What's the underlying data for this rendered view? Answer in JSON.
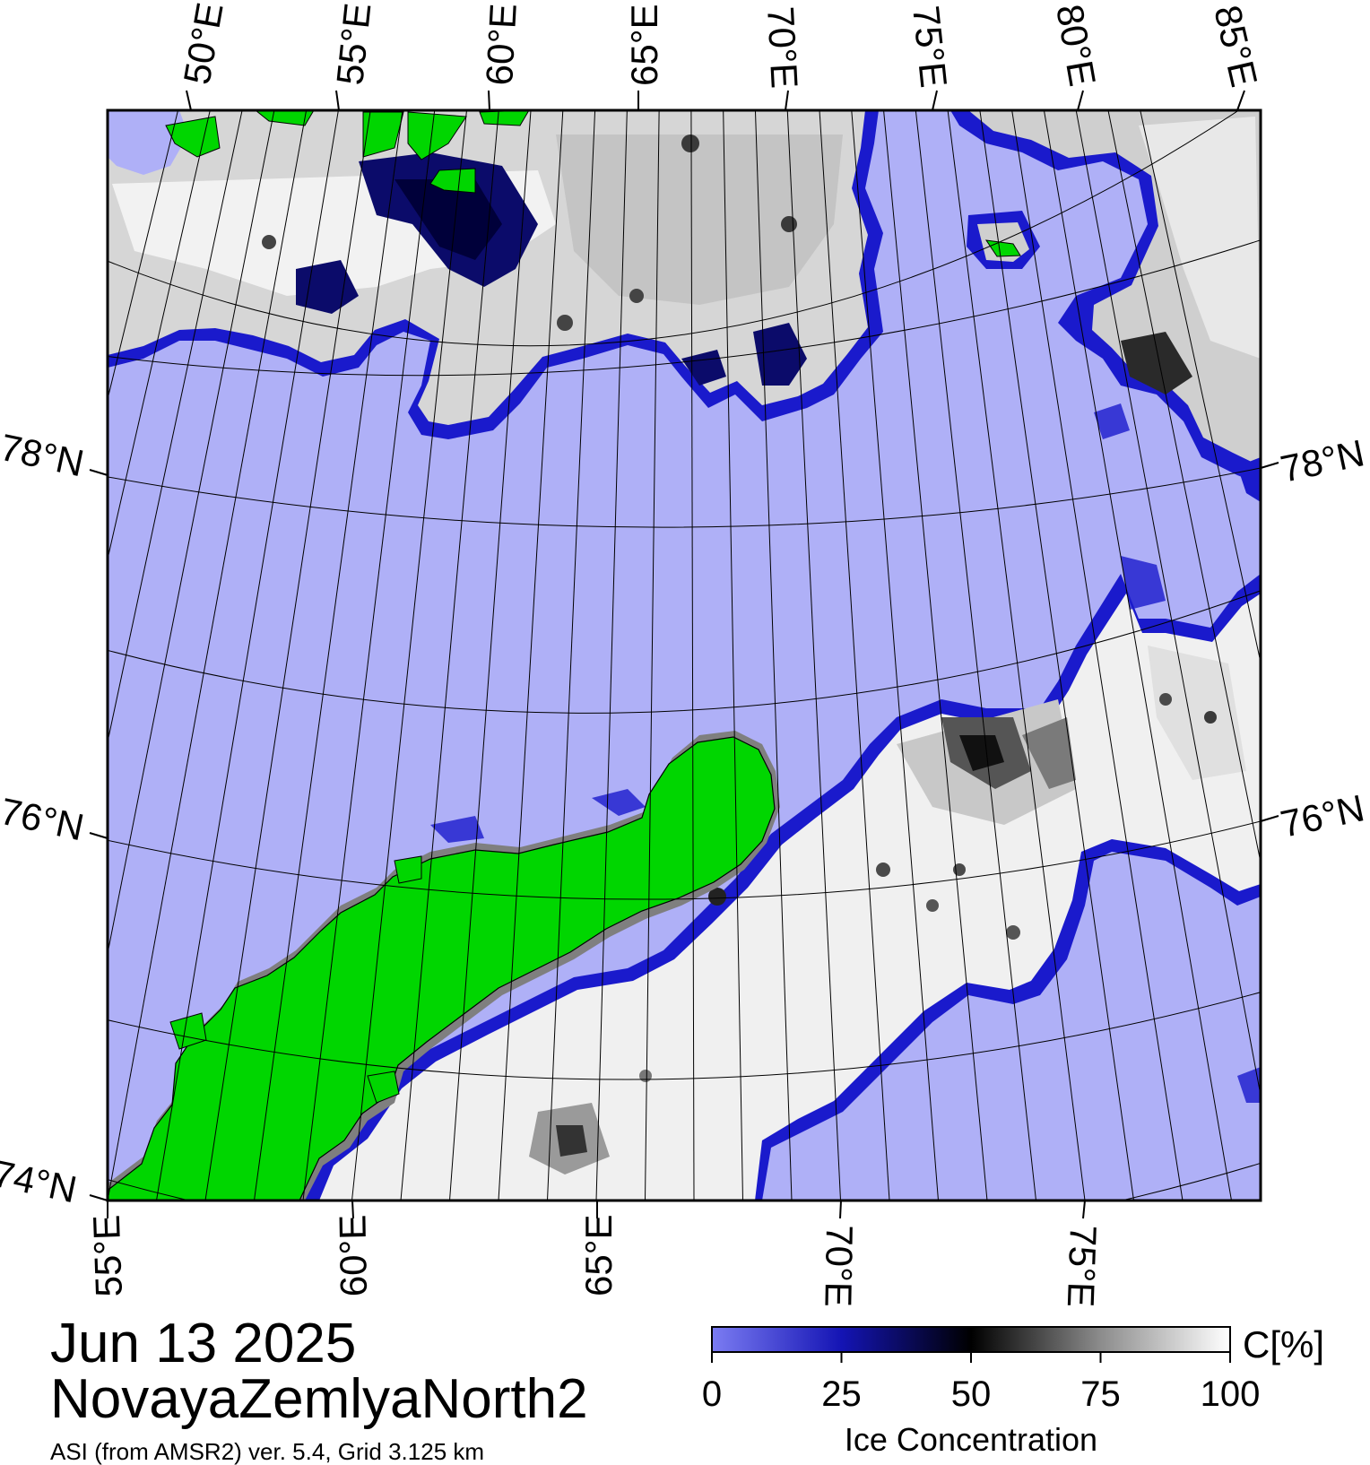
{
  "map": {
    "top_lon_labels": [
      "50°E",
      "55°E",
      "60°E",
      "65°E",
      "70°E",
      "75°E",
      "80°E",
      "85°E"
    ],
    "bottom_lon_labels": [
      "55°E",
      "60°E",
      "65°E",
      "70°E",
      "75°E"
    ],
    "left_lat_labels": [
      "78°N",
      "76°N",
      "74°N"
    ],
    "right_lat_labels": [
      "78°N",
      "76°N"
    ],
    "colors": {
      "open_water": "#afb0f7",
      "land": "#00d600",
      "coast_fringe": "#7f7f7f",
      "ice_high": "#ffffff",
      "ice_mid": "#9a9a9a",
      "ice_low": "#000033",
      "ice_edge": "#1a1acc"
    }
  },
  "caption": {
    "date": "Jun 13 2025",
    "region": "NovayaZemlyaNorth2",
    "source": "ASI (from AMSR2) ver. 5.4,  Grid 3.125 km"
  },
  "colorbar": {
    "unit_label": "C[%]",
    "title": "Ice Concentration",
    "ticks": [
      "0",
      "25",
      "50",
      "75",
      "100"
    ],
    "gradient_stops": [
      "#7b7cf2",
      "#1414b4",
      "#000000",
      "#8c8c8c",
      "#ffffff"
    ]
  }
}
